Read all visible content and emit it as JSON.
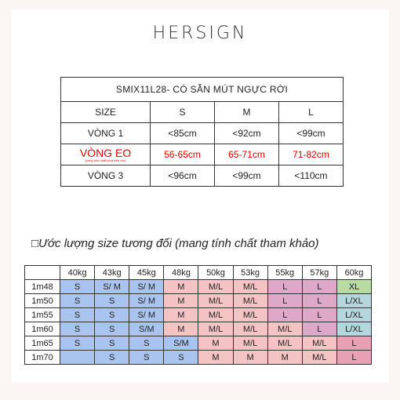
{
  "brand": "HERSIGN",
  "size_table": {
    "title": "SMIX11L28- CÓ SẴN MÚT NGỰC RỜI",
    "header": [
      "SIZE",
      "S",
      "M",
      "L"
    ],
    "rows": [
      {
        "label": "VÒNG 1",
        "note": "",
        "values": [
          "<85cm",
          "<92cm",
          "<99cm"
        ],
        "highlight": false
      },
      {
        "label": "VÒNG EO",
        "note": "(vòng nhỏ nhất phía trên rốn)",
        "values": [
          "56-65cm",
          "65-71cm",
          "71-82cm"
        ],
        "highlight": true
      },
      {
        "label": "VÒNG 3",
        "note": "",
        "values": [
          "<96cm",
          "<99cm",
          "<110cm"
        ],
        "highlight": false
      }
    ]
  },
  "estimate": {
    "subtitle": "□Ước lượng size tương đối (mang tính chất tham khảo)",
    "weights": [
      "40kg",
      "43kg",
      "45kg",
      "48kg",
      "50kg",
      "53kg",
      "55kg",
      "57kg",
      "60kg"
    ],
    "rows": [
      {
        "height": "1m48",
        "cells": [
          "S",
          "S/ M",
          "S/ M",
          "M",
          "M/L",
          "M/L",
          "L",
          "L",
          "XL"
        ],
        "colors": [
          "blue",
          "blue",
          "blue",
          "pink1",
          "pink1",
          "pink1",
          "rose",
          "rose",
          "green"
        ]
      },
      {
        "height": "1m50",
        "cells": [
          "S",
          "S",
          "S/ M",
          "M",
          "M/L",
          "M/L",
          "L",
          "L",
          "L/XL"
        ],
        "colors": [
          "blue",
          "blue",
          "blue",
          "pink1",
          "pink1",
          "pink1",
          "rose",
          "rose",
          "teal"
        ]
      },
      {
        "height": "1m55",
        "cells": [
          "S",
          "S",
          "S/ M",
          "M",
          "M/L",
          "M/L",
          "L",
          "L",
          "L/XL"
        ],
        "colors": [
          "blue",
          "blue",
          "blue",
          "pink1",
          "pink1",
          "pink1",
          "rose",
          "rose",
          "teal"
        ]
      },
      {
        "height": "1m60",
        "cells": [
          "S",
          "S",
          "S/M",
          "M",
          "M/L",
          "M/L",
          "M/L",
          "L",
          "L/XL"
        ],
        "colors": [
          "blue",
          "blue",
          "blue",
          "pink1",
          "pink1",
          "pink1",
          "pink1",
          "rose",
          "teal"
        ]
      },
      {
        "height": "1m65",
        "cells": [
          "S",
          "S",
          "S",
          "S/M",
          "M",
          "M/L",
          "M/L",
          "M/L",
          "L"
        ],
        "colors": [
          "blue",
          "blue",
          "blue",
          "blue",
          "pink1",
          "pink1",
          "pink1",
          "pink1",
          "red"
        ]
      },
      {
        "height": "1m70",
        "cells": [
          "",
          "S",
          "S",
          "S",
          "M",
          "M",
          "M",
          "M/L",
          "L"
        ],
        "colors": [
          "blue",
          "blue",
          "blue",
          "blue",
          "pink1",
          "pink1",
          "pink1",
          "pink1",
          "red"
        ]
      }
    ]
  }
}
